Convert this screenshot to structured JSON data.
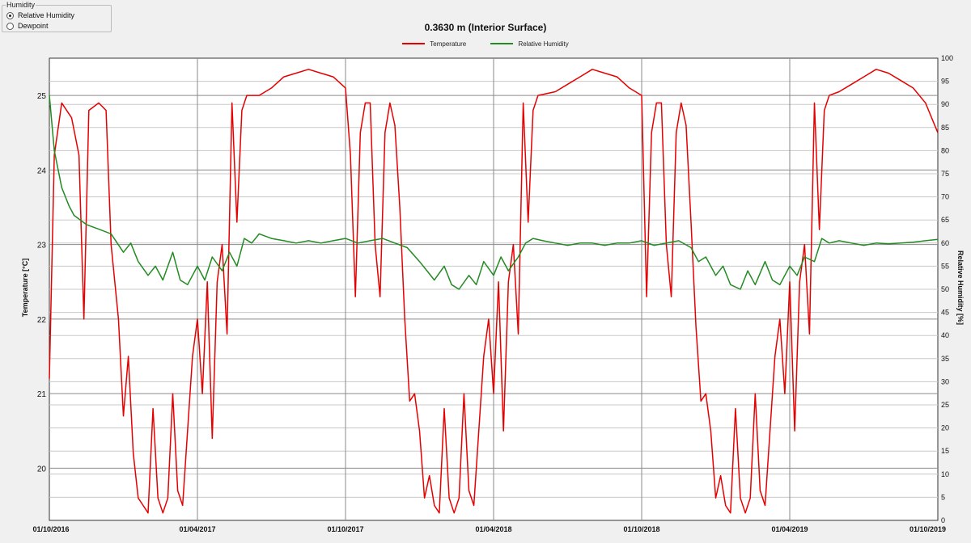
{
  "humidity_panel": {
    "title": "Humidity",
    "options": [
      {
        "label": "Relative Humidity",
        "selected": true
      },
      {
        "label": "Dewpoint",
        "selected": false
      }
    ]
  },
  "chart_data": {
    "type": "line",
    "title": "0.3630 m (Interior Surface)",
    "ylabel": "Temperature [°C]",
    "ylabel_right": "Relative Humidity [%]",
    "x_ticks": [
      "01/10/2016",
      "01/04/2017",
      "01/10/2017",
      "01/04/2018",
      "01/10/2018",
      "01/04/2019",
      "01/10/2019"
    ],
    "y_ticks_left": [
      20,
      21,
      22,
      23,
      24,
      25
    ],
    "y_ticks_right": [
      0,
      5,
      10,
      15,
      20,
      25,
      30,
      35,
      40,
      45,
      50,
      55,
      60,
      65,
      70,
      75,
      80,
      85,
      90,
      95,
      100
    ],
    "ylim": [
      19.3,
      25.5
    ],
    "ylim_right": [
      0,
      100
    ],
    "xlim": [
      0,
      36
    ],
    "x_unit": "months since 01/10/2016",
    "grid": true,
    "legend_position": "top-center",
    "series": [
      {
        "name": "Temperature",
        "axis": "left",
        "color": "#e60000",
        "points": [
          [
            0,
            21.2
          ],
          [
            0.2,
            24.2
          ],
          [
            0.5,
            24.9
          ],
          [
            0.9,
            24.7
          ],
          [
            1.2,
            24.2
          ],
          [
            1.4,
            22.0
          ],
          [
            1.6,
            24.8
          ],
          [
            2.0,
            24.9
          ],
          [
            2.3,
            24.8
          ],
          [
            2.5,
            23.0
          ],
          [
            2.8,
            22.0
          ],
          [
            3.0,
            20.7
          ],
          [
            3.2,
            21.5
          ],
          [
            3.4,
            20.2
          ],
          [
            3.6,
            19.6
          ],
          [
            3.8,
            19.5
          ],
          [
            4.0,
            19.4
          ],
          [
            4.2,
            20.8
          ],
          [
            4.4,
            19.6
          ],
          [
            4.6,
            19.4
          ],
          [
            4.8,
            19.6
          ],
          [
            5.0,
            21.0
          ],
          [
            5.2,
            19.7
          ],
          [
            5.4,
            19.5
          ],
          [
            5.6,
            20.5
          ],
          [
            5.8,
            21.5
          ],
          [
            6.0,
            22.0
          ],
          [
            6.2,
            21.0
          ],
          [
            6.4,
            22.5
          ],
          [
            6.6,
            20.4
          ],
          [
            6.8,
            22.5
          ],
          [
            7.0,
            23.0
          ],
          [
            7.2,
            21.8
          ],
          [
            7.4,
            24.9
          ],
          [
            7.6,
            23.3
          ],
          [
            7.8,
            24.8
          ],
          [
            8.0,
            25.0
          ],
          [
            8.5,
            25.0
          ],
          [
            9.0,
            25.1
          ],
          [
            9.5,
            25.25
          ],
          [
            10.0,
            25.3
          ],
          [
            10.5,
            25.35
          ],
          [
            11.0,
            25.3
          ],
          [
            11.5,
            25.25
          ],
          [
            12.0,
            25.1
          ],
          [
            12.2,
            24.2
          ],
          [
            12.4,
            22.3
          ],
          [
            12.6,
            24.5
          ],
          [
            12.8,
            24.9
          ],
          [
            13.0,
            24.9
          ],
          [
            13.2,
            23.0
          ],
          [
            13.4,
            22.3
          ],
          [
            13.6,
            24.5
          ],
          [
            13.8,
            24.9
          ],
          [
            14.0,
            24.6
          ],
          [
            14.2,
            23.5
          ],
          [
            14.4,
            22.0
          ],
          [
            14.6,
            20.9
          ],
          [
            14.8,
            21.0
          ],
          [
            15.0,
            20.5
          ],
          [
            15.2,
            19.6
          ],
          [
            15.4,
            19.9
          ],
          [
            15.6,
            19.5
          ],
          [
            15.8,
            19.4
          ],
          [
            16.0,
            20.8
          ],
          [
            16.2,
            19.6
          ],
          [
            16.4,
            19.4
          ],
          [
            16.6,
            19.6
          ],
          [
            16.8,
            21.0
          ],
          [
            17.0,
            19.7
          ],
          [
            17.2,
            19.5
          ],
          [
            17.4,
            20.5
          ],
          [
            17.6,
            21.5
          ],
          [
            17.8,
            22.0
          ],
          [
            18.0,
            21.0
          ],
          [
            18.2,
            22.5
          ],
          [
            18.4,
            20.5
          ],
          [
            18.6,
            22.5
          ],
          [
            18.8,
            23.0
          ],
          [
            19.0,
            21.8
          ],
          [
            19.2,
            24.9
          ],
          [
            19.4,
            23.3
          ],
          [
            19.6,
            24.8
          ],
          [
            19.8,
            25.0
          ],
          [
            20.5,
            25.05
          ],
          [
            21.0,
            25.15
          ],
          [
            21.5,
            25.25
          ],
          [
            22.0,
            25.35
          ],
          [
            22.5,
            25.3
          ],
          [
            23.0,
            25.25
          ],
          [
            23.5,
            25.1
          ],
          [
            24.0,
            25.0
          ],
          [
            24.2,
            22.3
          ],
          [
            24.4,
            24.5
          ],
          [
            24.6,
            24.9
          ],
          [
            24.8,
            24.9
          ],
          [
            25.0,
            23.0
          ],
          [
            25.2,
            22.3
          ],
          [
            25.4,
            24.5
          ],
          [
            25.6,
            24.9
          ],
          [
            25.8,
            24.6
          ],
          [
            26.0,
            23.3
          ],
          [
            26.2,
            21.9
          ],
          [
            26.4,
            20.9
          ],
          [
            26.6,
            21.0
          ],
          [
            26.8,
            20.5
          ],
          [
            27.0,
            19.6
          ],
          [
            27.2,
            19.9
          ],
          [
            27.4,
            19.5
          ],
          [
            27.6,
            19.4
          ],
          [
            27.8,
            20.8
          ],
          [
            28.0,
            19.6
          ],
          [
            28.2,
            19.4
          ],
          [
            28.4,
            19.6
          ],
          [
            28.6,
            21.0
          ],
          [
            28.8,
            19.7
          ],
          [
            29.0,
            19.5
          ],
          [
            29.2,
            20.5
          ],
          [
            29.4,
            21.5
          ],
          [
            29.6,
            22.0
          ],
          [
            29.8,
            21.0
          ],
          [
            30.0,
            22.5
          ],
          [
            30.2,
            20.5
          ],
          [
            30.4,
            22.5
          ],
          [
            30.6,
            23.0
          ],
          [
            30.8,
            21.8
          ],
          [
            31.0,
            24.9
          ],
          [
            31.2,
            23.2
          ],
          [
            31.4,
            24.8
          ],
          [
            31.6,
            25.0
          ],
          [
            32.0,
            25.05
          ],
          [
            32.5,
            25.15
          ],
          [
            33.0,
            25.25
          ],
          [
            33.5,
            25.35
          ],
          [
            34.0,
            25.3
          ],
          [
            34.5,
            25.2
          ],
          [
            35.0,
            25.1
          ],
          [
            35.5,
            24.9
          ],
          [
            36.0,
            24.5
          ]
        ]
      },
      {
        "name": "Relative Humidity",
        "axis": "right",
        "color": "#228b22",
        "points": [
          [
            0,
            92
          ],
          [
            0.2,
            80
          ],
          [
            0.5,
            72
          ],
          [
            0.8,
            68
          ],
          [
            1.0,
            66
          ],
          [
            1.5,
            64
          ],
          [
            2.0,
            63
          ],
          [
            2.5,
            62
          ],
          [
            3.0,
            58
          ],
          [
            3.3,
            60
          ],
          [
            3.6,
            56
          ],
          [
            4.0,
            53
          ],
          [
            4.3,
            55
          ],
          [
            4.6,
            52
          ],
          [
            5.0,
            58
          ],
          [
            5.3,
            52
          ],
          [
            5.6,
            51
          ],
          [
            6.0,
            55
          ],
          [
            6.3,
            52
          ],
          [
            6.6,
            57
          ],
          [
            7.0,
            54
          ],
          [
            7.3,
            58
          ],
          [
            7.6,
            55
          ],
          [
            7.9,
            61
          ],
          [
            8.2,
            60
          ],
          [
            8.5,
            62
          ],
          [
            9.0,
            61
          ],
          [
            9.5,
            60.5
          ],
          [
            10.0,
            60
          ],
          [
            10.5,
            60.5
          ],
          [
            11.0,
            60
          ],
          [
            11.5,
            60.5
          ],
          [
            12.0,
            61
          ],
          [
            12.5,
            60
          ],
          [
            13.0,
            60.5
          ],
          [
            13.5,
            61
          ],
          [
            14.0,
            60
          ],
          [
            14.5,
            59
          ],
          [
            15.0,
            56
          ],
          [
            15.3,
            54
          ],
          [
            15.6,
            52
          ],
          [
            16.0,
            55
          ],
          [
            16.3,
            51
          ],
          [
            16.6,
            50
          ],
          [
            17.0,
            53
          ],
          [
            17.3,
            51
          ],
          [
            17.6,
            56
          ],
          [
            18.0,
            53
          ],
          [
            18.3,
            57
          ],
          [
            18.6,
            54
          ],
          [
            19.0,
            57
          ],
          [
            19.3,
            60
          ],
          [
            19.6,
            61
          ],
          [
            20.0,
            60.5
          ],
          [
            20.5,
            60
          ],
          [
            21.0,
            59.5
          ],
          [
            21.5,
            60
          ],
          [
            22.0,
            60
          ],
          [
            22.5,
            59.5
          ],
          [
            23.0,
            60
          ],
          [
            23.5,
            60
          ],
          [
            24.0,
            60.5
          ],
          [
            24.5,
            59.5
          ],
          [
            25.0,
            60
          ],
          [
            25.5,
            60.5
          ],
          [
            26.0,
            59
          ],
          [
            26.3,
            56
          ],
          [
            26.6,
            57
          ],
          [
            27.0,
            53
          ],
          [
            27.3,
            55
          ],
          [
            27.6,
            51
          ],
          [
            28.0,
            50
          ],
          [
            28.3,
            54
          ],
          [
            28.6,
            51
          ],
          [
            29.0,
            56
          ],
          [
            29.3,
            52
          ],
          [
            29.6,
            51
          ],
          [
            30.0,
            55
          ],
          [
            30.3,
            53
          ],
          [
            30.6,
            57
          ],
          [
            31.0,
            56
          ],
          [
            31.3,
            61
          ],
          [
            31.6,
            60
          ],
          [
            32.0,
            60.5
          ],
          [
            32.5,
            60
          ],
          [
            33.0,
            59.5
          ],
          [
            33.5,
            60
          ],
          [
            34.0,
            59.8
          ],
          [
            34.5,
            60
          ],
          [
            35.0,
            60.2
          ],
          [
            35.5,
            60.5
          ],
          [
            36.0,
            60.8
          ]
        ]
      }
    ]
  }
}
